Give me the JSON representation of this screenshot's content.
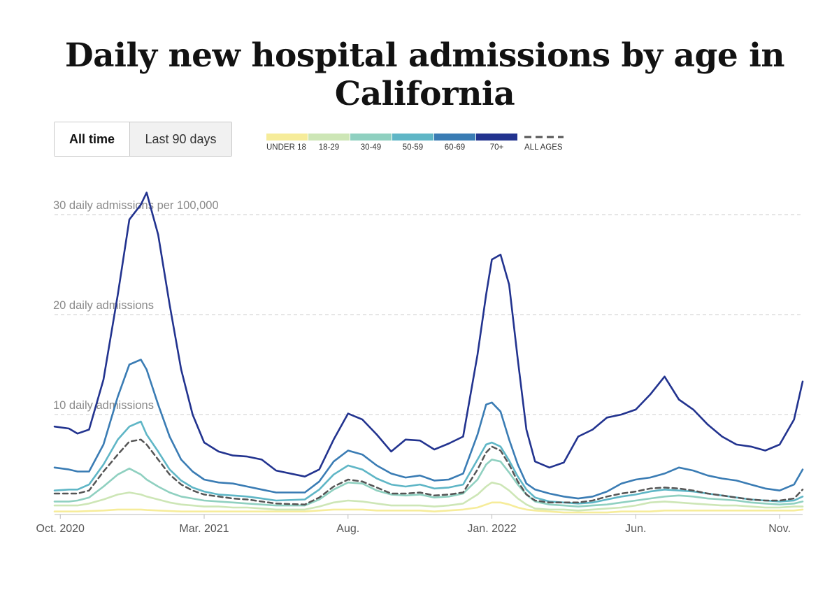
{
  "title": "Daily new hospital admissions by age in California",
  "toggle": {
    "all_time": "All time",
    "last_90": "Last 90 days"
  },
  "colors": {
    "under18": "#f6ec9a",
    "a18_29": "#cde6b6",
    "a30_49": "#8fd0c0",
    "a50_59": "#5fb6c6",
    "a60_69": "#3a7cb4",
    "a70": "#22338f",
    "all": "#555555",
    "grid": "#d8d8d8",
    "axis": "#bbbbbb"
  },
  "chart_data": {
    "type": "line",
    "title": "Daily new hospital admissions by age in California",
    "ylabel": "daily admissions per 100,000",
    "ylim": [
      0,
      32
    ],
    "y_gridlines": [
      10,
      20,
      30
    ],
    "y_tick_labels": [
      "10 daily admissions",
      "20 daily admissions",
      "30 daily admissions per 100,000"
    ],
    "x_tick_labels": [
      "Oct. 2020",
      "Mar. 2021",
      "Aug.",
      "Jan. 2022",
      "Jun.",
      "Nov."
    ],
    "x_tick_positions": [
      0,
      5,
      10,
      15,
      20,
      25
    ],
    "x_range": [
      -0.2,
      25.8
    ],
    "x_unit": "months since Oct. 2020",
    "x": [
      -0.2,
      0.3,
      0.6,
      1.0,
      1.5,
      2.0,
      2.4,
      2.8,
      3.0,
      3.4,
      3.8,
      4.2,
      4.6,
      5.0,
      5.5,
      6.0,
      6.5,
      7.0,
      7.5,
      8.5,
      9.0,
      9.5,
      10.0,
      10.5,
      11.0,
      11.5,
      12.0,
      12.5,
      13.0,
      13.5,
      14.0,
      14.5,
      14.8,
      15.0,
      15.3,
      15.6,
      15.9,
      16.2,
      16.5,
      17.0,
      17.5,
      18.0,
      18.5,
      19.0,
      19.5,
      20.0,
      20.5,
      21.0,
      21.5,
      22.0,
      22.5,
      23.0,
      23.5,
      24.0,
      24.5,
      25.0,
      25.5,
      25.8
    ],
    "series": [
      {
        "name": "UNDER 18",
        "key": "under18",
        "values": [
          0.3,
          0.3,
          0.3,
          0.35,
          0.4,
          0.5,
          0.5,
          0.5,
          0.45,
          0.4,
          0.35,
          0.3,
          0.3,
          0.3,
          0.3,
          0.3,
          0.3,
          0.3,
          0.3,
          0.3,
          0.4,
          0.5,
          0.5,
          0.5,
          0.4,
          0.4,
          0.4,
          0.4,
          0.3,
          0.4,
          0.5,
          0.7,
          1.0,
          1.2,
          1.2,
          1.0,
          0.7,
          0.5,
          0.4,
          0.3,
          0.2,
          0.2,
          0.2,
          0.2,
          0.3,
          0.3,
          0.3,
          0.4,
          0.4,
          0.4,
          0.4,
          0.4,
          0.4,
          0.4,
          0.4,
          0.4,
          0.4,
          0.5
        ]
      },
      {
        "name": "18-29",
        "key": "a18_29",
        "values": [
          0.9,
          0.9,
          0.9,
          1.1,
          1.5,
          2.0,
          2.2,
          2.0,
          1.8,
          1.5,
          1.2,
          1.0,
          0.9,
          0.8,
          0.8,
          0.7,
          0.7,
          0.6,
          0.5,
          0.5,
          0.8,
          1.2,
          1.4,
          1.3,
          1.1,
          0.9,
          0.9,
          0.9,
          0.8,
          0.9,
          1.1,
          2.0,
          2.8,
          3.2,
          3.0,
          2.4,
          1.6,
          1.0,
          0.6,
          0.5,
          0.5,
          0.4,
          0.5,
          0.6,
          0.7,
          0.9,
          1.2,
          1.3,
          1.2,
          1.1,
          1.0,
          0.9,
          0.9,
          0.8,
          0.7,
          0.7,
          0.8,
          0.8
        ]
      },
      {
        "name": "30-49",
        "key": "a30_49",
        "values": [
          1.3,
          1.3,
          1.4,
          1.7,
          2.8,
          4.0,
          4.6,
          4.0,
          3.5,
          2.8,
          2.2,
          1.8,
          1.6,
          1.4,
          1.3,
          1.2,
          1.1,
          1.0,
          0.9,
          0.9,
          1.5,
          2.5,
          3.2,
          3.1,
          2.4,
          2.0,
          1.9,
          2.0,
          1.7,
          1.8,
          2.1,
          3.5,
          5.0,
          5.5,
          5.3,
          4.2,
          3.0,
          2.0,
          1.3,
          1.0,
          0.9,
          0.8,
          0.9,
          1.0,
          1.2,
          1.4,
          1.6,
          1.8,
          1.9,
          1.8,
          1.6,
          1.5,
          1.4,
          1.2,
          1.1,
          1.0,
          1.1,
          1.3
        ]
      },
      {
        "name": "50-59",
        "key": "a50_59",
        "values": [
          2.4,
          2.5,
          2.5,
          3.0,
          5.0,
          7.5,
          8.8,
          9.3,
          8.0,
          6.3,
          4.5,
          3.4,
          2.7,
          2.3,
          2.0,
          1.9,
          1.8,
          1.6,
          1.4,
          1.5,
          2.5,
          4.0,
          4.9,
          4.5,
          3.6,
          3.0,
          2.8,
          3.0,
          2.6,
          2.7,
          3.0,
          5.5,
          7.0,
          7.2,
          6.8,
          5.4,
          3.8,
          2.5,
          1.7,
          1.3,
          1.2,
          1.1,
          1.2,
          1.5,
          1.8,
          2.0,
          2.3,
          2.5,
          2.4,
          2.3,
          2.1,
          1.9,
          1.7,
          1.5,
          1.4,
          1.3,
          1.4,
          1.8
        ]
      },
      {
        "name": "60-69",
        "key": "a60_69",
        "values": [
          4.7,
          4.5,
          4.3,
          4.3,
          7.0,
          11.8,
          15.0,
          15.5,
          14.5,
          11.0,
          7.8,
          5.5,
          4.3,
          3.5,
          3.2,
          3.1,
          2.8,
          2.5,
          2.2,
          2.2,
          3.3,
          5.3,
          6.4,
          6.0,
          4.9,
          4.1,
          3.7,
          3.9,
          3.4,
          3.5,
          4.1,
          8.0,
          11.0,
          11.2,
          10.3,
          7.5,
          5.0,
          3.1,
          2.5,
          2.1,
          1.8,
          1.6,
          1.8,
          2.3,
          3.1,
          3.5,
          3.7,
          4.1,
          4.7,
          4.4,
          3.9,
          3.6,
          3.4,
          3.0,
          2.6,
          2.4,
          3.0,
          4.5
        ]
      },
      {
        "name": "70+",
        "key": "a70",
        "values": [
          8.8,
          8.6,
          8.1,
          8.5,
          13.5,
          22.0,
          29.5,
          31.0,
          32.2,
          28.0,
          21.0,
          14.5,
          10.0,
          7.2,
          6.3,
          5.9,
          5.8,
          5.5,
          4.4,
          3.8,
          4.5,
          7.5,
          10.1,
          9.5,
          8.0,
          6.3,
          7.5,
          7.4,
          6.5,
          7.1,
          7.8,
          16.0,
          22.0,
          25.5,
          26.0,
          23.0,
          15.5,
          8.5,
          5.3,
          4.7,
          5.2,
          7.8,
          8.5,
          9.7,
          10.0,
          10.5,
          12.0,
          13.8,
          11.5,
          10.5,
          9.0,
          7.8,
          7.0,
          6.8,
          6.4,
          7.0,
          9.5,
          13.3
        ]
      },
      {
        "name": "ALL AGES",
        "key": "all",
        "values": [
          2.1,
          2.1,
          2.1,
          2.4,
          4.3,
          6.0,
          7.3,
          7.5,
          7.0,
          5.5,
          4.0,
          3.0,
          2.4,
          2.0,
          1.8,
          1.6,
          1.5,
          1.3,
          1.1,
          1.0,
          1.7,
          2.8,
          3.5,
          3.3,
          2.7,
          2.1,
          2.1,
          2.2,
          1.9,
          2.0,
          2.2,
          4.5,
          6.2,
          6.8,
          6.4,
          5.0,
          3.3,
          2.0,
          1.4,
          1.2,
          1.2,
          1.2,
          1.4,
          1.8,
          2.1,
          2.3,
          2.6,
          2.7,
          2.6,
          2.4,
          2.1,
          1.9,
          1.7,
          1.5,
          1.4,
          1.4,
          1.6,
          2.5
        ]
      }
    ]
  }
}
